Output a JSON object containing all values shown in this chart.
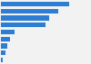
{
  "values": [
    100,
    83,
    70,
    65,
    20,
    13,
    9,
    7,
    2
  ],
  "bar_color": "#2d7dd2",
  "background_color": "#f2f2f2",
  "xlim": [
    0,
    130
  ]
}
